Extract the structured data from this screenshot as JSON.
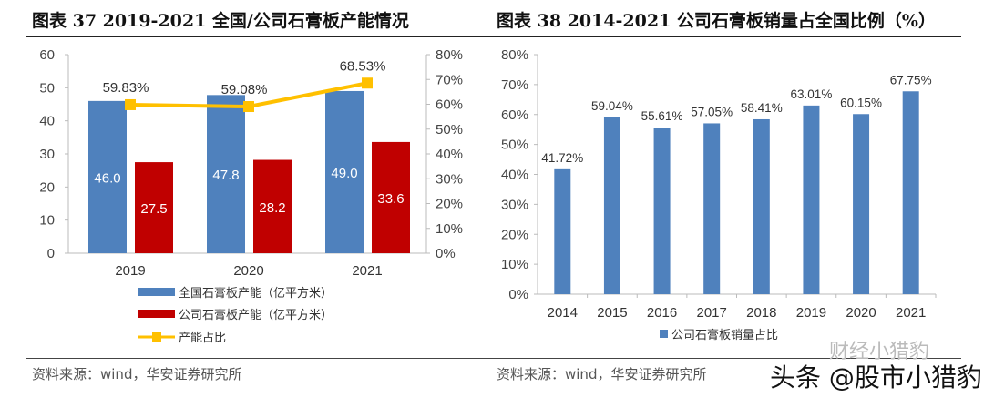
{
  "left": {
    "title": "图表 37 2019-2021 全国/公司石膏板产能情况",
    "source": "资料来源：wind，华安证券研究所"
  },
  "right": {
    "title": "图表 38 2014-2021 公司石膏板销量占全国比例（%）",
    "source": "资料来源：wind，华安证券研究所"
  },
  "watermark": {
    "main": "头条 @股市小猎豹",
    "faint": "财经小猎豹"
  },
  "chart_data": [
    {
      "type": "bar+line",
      "categories": [
        "2019",
        "2020",
        "2021"
      ],
      "series": [
        {
          "name": "全国石膏板产能（亿平方米）",
          "type": "bar",
          "axis": "left",
          "color": "#4f81bd",
          "values": [
            46.0,
            47.8,
            49.0
          ],
          "labels": [
            "46.0",
            "47.8",
            "49.0"
          ]
        },
        {
          "name": "公司石膏板产能（亿平方米）",
          "type": "bar",
          "axis": "left",
          "color": "#c00000",
          "values": [
            27.5,
            28.2,
            33.6
          ],
          "labels": [
            "27.5",
            "28.2",
            "33.6"
          ]
        },
        {
          "name": "产能占比",
          "type": "line",
          "axis": "right",
          "color": "#ffc000",
          "values": [
            59.83,
            59.08,
            68.53
          ],
          "labels": [
            "59.83%",
            "59.08%",
            "68.53%"
          ]
        }
      ],
      "ylim": [
        0,
        60
      ],
      "yticks": [
        "0",
        "10",
        "20",
        "30",
        "40",
        "50",
        "60"
      ],
      "y2lim": [
        0,
        80
      ],
      "y2ticks": [
        "0%",
        "10%",
        "20%",
        "30%",
        "40%",
        "50%",
        "60%",
        "70%",
        "80%"
      ],
      "legend": "bottom"
    },
    {
      "type": "bar",
      "categories": [
        "2014",
        "2015",
        "2016",
        "2017",
        "2018",
        "2019",
        "2020",
        "2021"
      ],
      "series": [
        {
          "name": "公司石膏板销量占比",
          "color": "#4f81bd",
          "values": [
            41.72,
            59.04,
            55.61,
            57.05,
            58.41,
            63.01,
            60.15,
            67.75
          ],
          "labels": [
            "41.72%",
            "59.04%",
            "55.61%",
            "57.05%",
            "58.41%",
            "63.01%",
            "60.15%",
            "67.75%"
          ]
        }
      ],
      "ylim": [
        0,
        80
      ],
      "yticks": [
        "0%",
        "10%",
        "20%",
        "30%",
        "40%",
        "50%",
        "60%",
        "70%",
        "80%"
      ],
      "legend": "bottom"
    }
  ]
}
